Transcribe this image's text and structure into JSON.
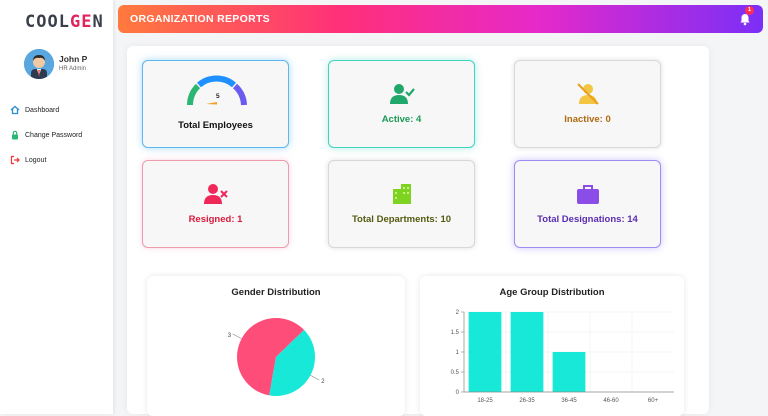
{
  "app": {
    "logo_prefix": "COOL",
    "logo_hl": "GE",
    "logo_suffix": "N"
  },
  "user": {
    "name": "John P",
    "role": "HR Admin"
  },
  "sidebar": {
    "items": [
      {
        "label": "Dashboard",
        "icon": "home-icon",
        "color": "#2a8ed1"
      },
      {
        "label": "Change Password",
        "icon": "lock-icon",
        "color": "#2bb673"
      },
      {
        "label": "Logout",
        "icon": "logout-icon",
        "color": "#e53935"
      }
    ]
  },
  "header": {
    "title": "ORGANIZATION REPORTS",
    "notifications": "1"
  },
  "cards": {
    "total": {
      "value": "5",
      "label": "Total Employees"
    },
    "active": {
      "label": "Active: 4",
      "color": "#1a9a55"
    },
    "inactive": {
      "label": "Inactive: 0",
      "color": "#b06a10"
    },
    "resigned": {
      "label": "Resigned: 1",
      "color": "#d81b3c"
    },
    "departments": {
      "label": "Total Departments: 10",
      "color": "#555a10"
    },
    "designations": {
      "label": "Total Designations: 14",
      "color": "#5a2db0"
    }
  },
  "chart_data": [
    {
      "type": "pie",
      "title": "Gender Distribution",
      "values": [
        3,
        2
      ],
      "colors": [
        "#ff4d7a",
        "#17e8d8"
      ],
      "labels": [
        "3",
        "2"
      ]
    },
    {
      "type": "bar",
      "title": "Age Group Distribution",
      "categories": [
        "18-25",
        "26-35",
        "36-45",
        "46-60",
        "60+"
      ],
      "values": [
        2,
        2,
        1,
        0,
        0
      ],
      "ylim": [
        0,
        2
      ],
      "yticks": [
        "0",
        "0.5",
        "1",
        "1.5",
        "2"
      ],
      "color": "#17e8d8"
    }
  ]
}
